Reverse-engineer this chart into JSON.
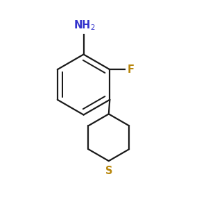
{
  "background_color": "#ffffff",
  "bond_color": "#1a1a1a",
  "nh2_color": "#3333cc",
  "f_color": "#b8860b",
  "s_color": "#b8860b",
  "bond_width": 1.6,
  "figsize": [
    3.0,
    3.0
  ],
  "dpi": 100
}
